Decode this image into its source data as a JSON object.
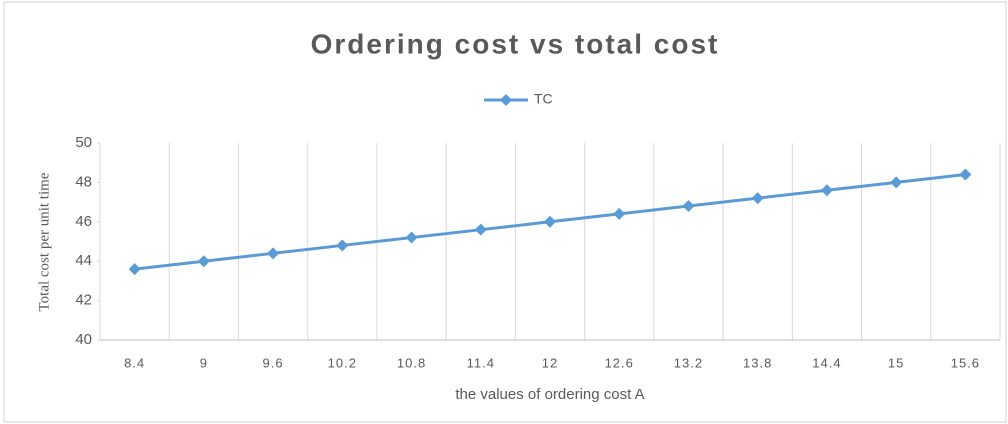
{
  "chart_data": {
    "type": "line",
    "title": "Ordering cost vs total cost",
    "x_label": "the values of ordering cost A",
    "y_label": "Total cost per unit time",
    "categories": [
      "8.4",
      "9",
      "9.6",
      "10.2",
      "10.8",
      "11.4",
      "12",
      "12.6",
      "13.2",
      "13.8",
      "14.4",
      "15",
      "15.6"
    ],
    "series": [
      {
        "name": "TC",
        "color": "#5b9bd5",
        "values": [
          43.6,
          44.0,
          44.4,
          44.8,
          45.2,
          45.6,
          46.0,
          46.4,
          46.8,
          47.2,
          47.6,
          48.0,
          48.4
        ]
      }
    ],
    "ylim": [
      40,
      50
    ],
    "yticks": [
      40,
      42,
      44,
      46,
      48,
      50
    ],
    "grid": "vertical",
    "legend": "top"
  }
}
